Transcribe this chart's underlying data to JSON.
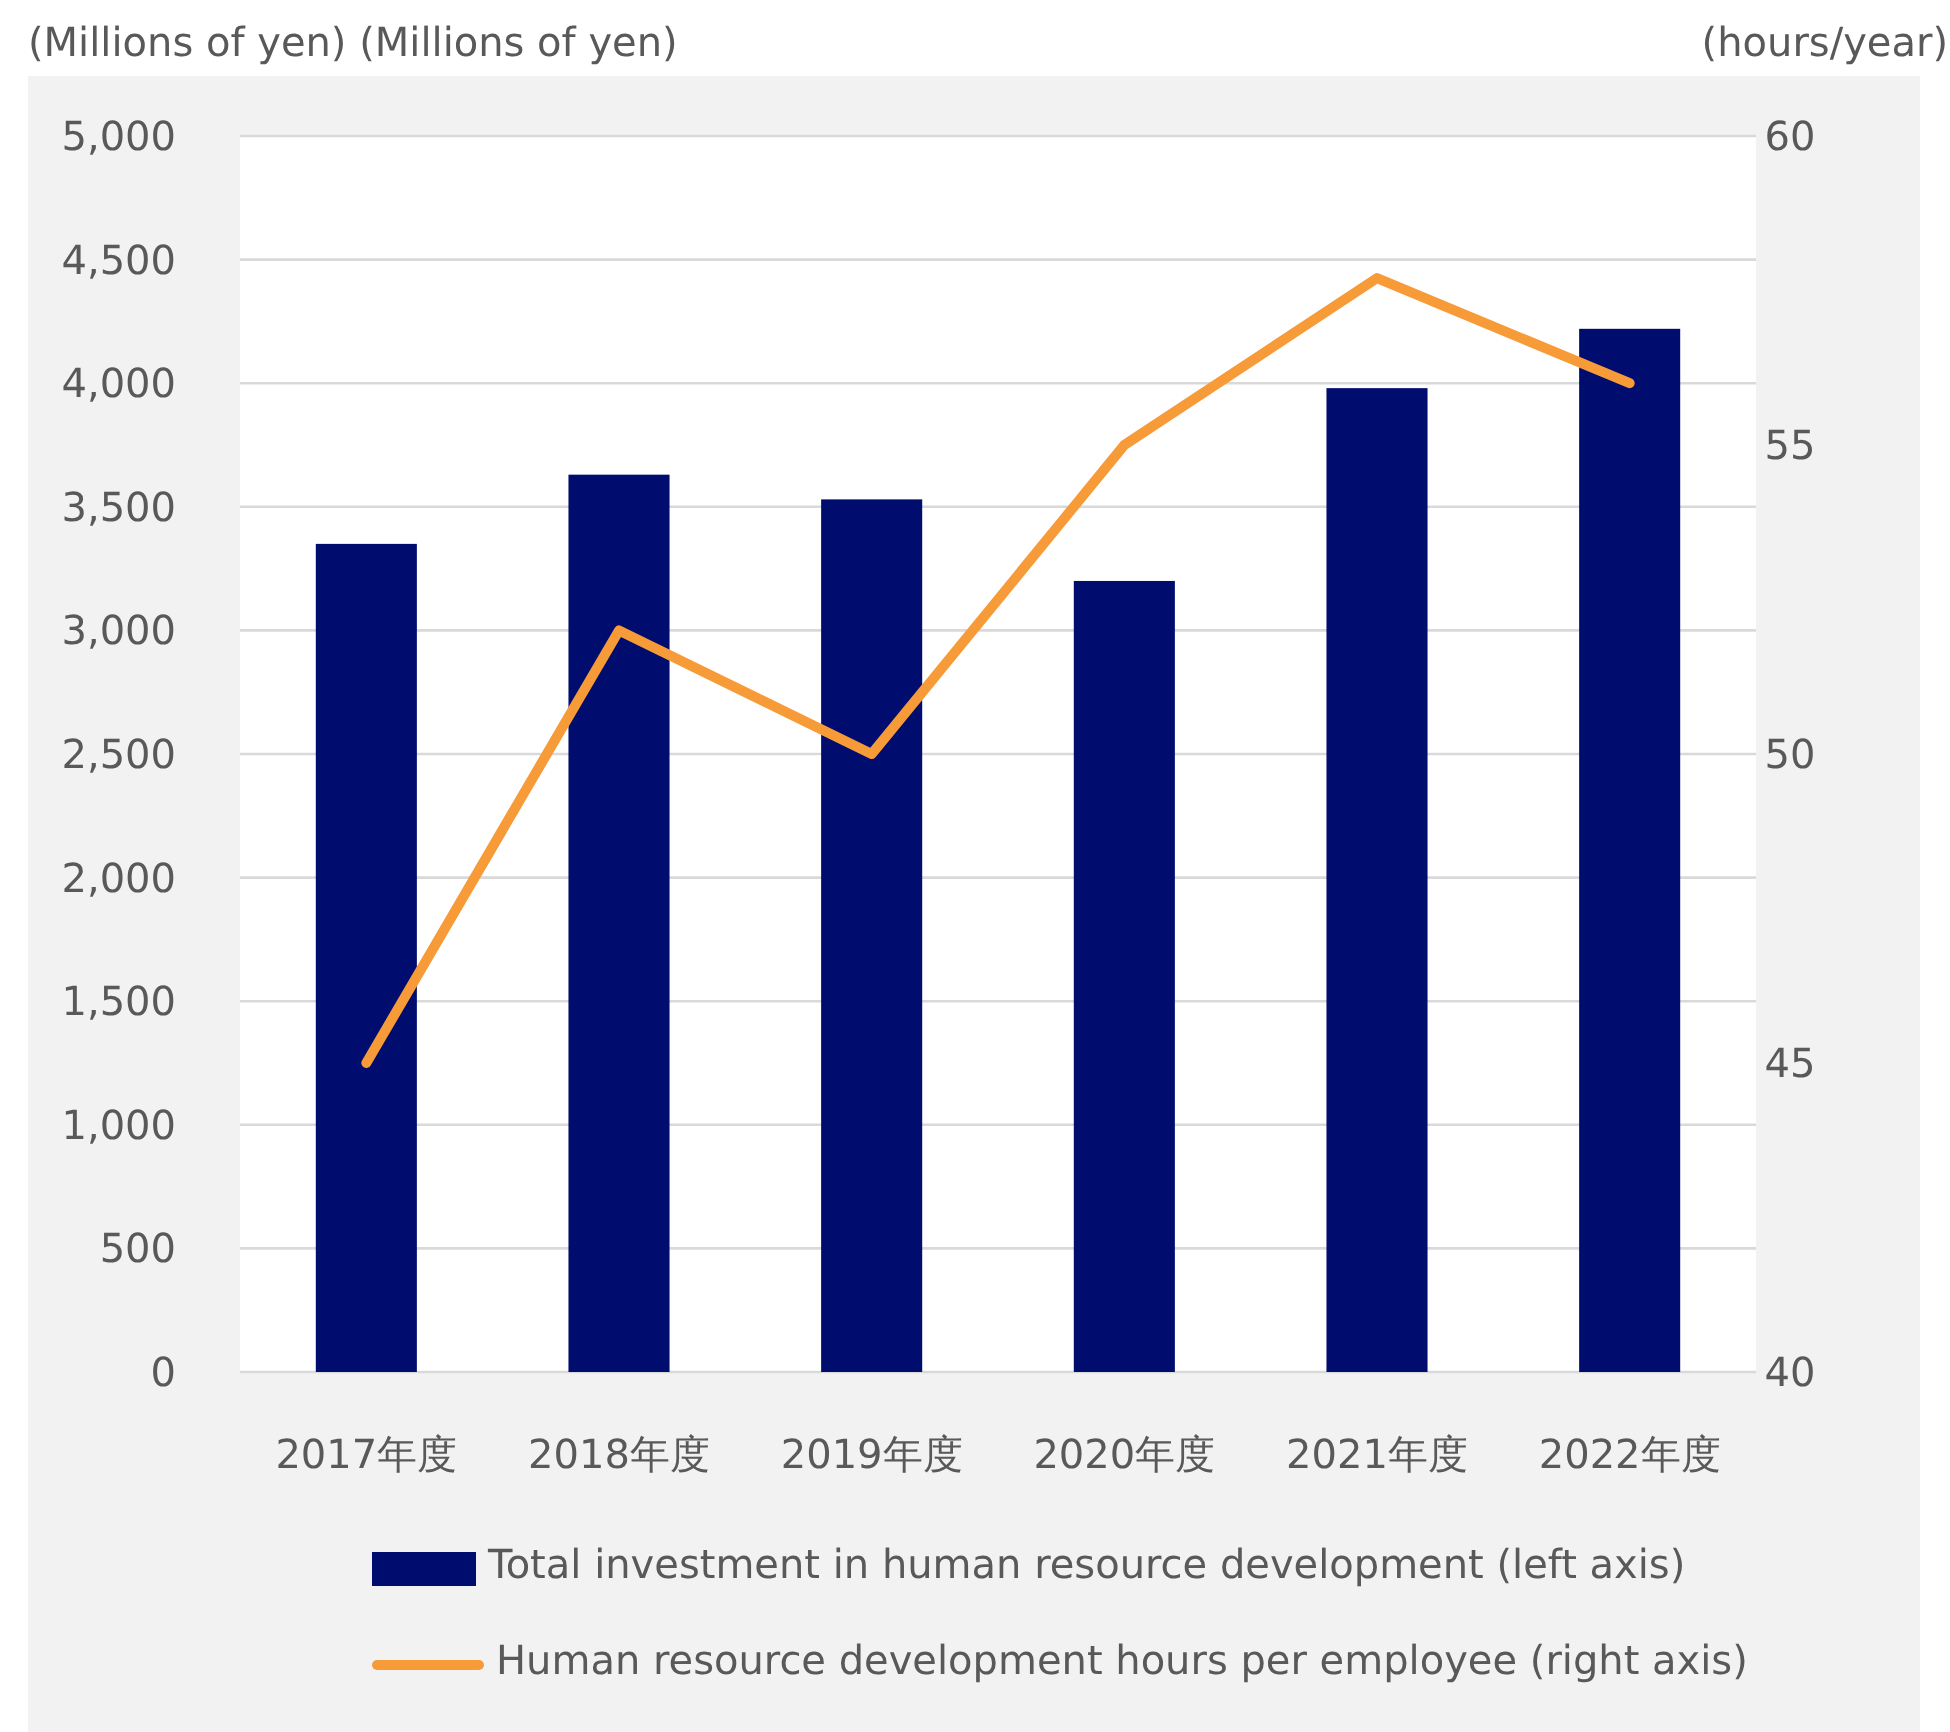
{
  "chart_data": {
    "type": "bar",
    "ylabel": "(Millions of yen) (Millions of yen)",
    "y2label": "(hours/year)",
    "categories": [
      "2017年度",
      "2018年度",
      "2019年度",
      "2020年度",
      "2021年度",
      "2022年度"
    ],
    "series": [
      {
        "name": "Total investment in human resource development (left axis)",
        "color": "#000c6e",
        "values": [
          3350,
          3630,
          3530,
          3200,
          3980,
          4220
        ]
      },
      {
        "name": "Human resource development hours per employee (right axis)",
        "type": "line",
        "axis": "y2",
        "color": "#f79a38",
        "values": [
          45,
          52,
          50,
          55,
          57.7,
          56
        ]
      }
    ],
    "ylim": [
      0,
      5000
    ],
    "yticks": [
      0,
      {
        "value": 500,
        "label": "500"
      },
      {
        "value": 1000,
        "label": "1,000"
      },
      {
        "value": 1500,
        "label": "1,500"
      },
      {
        "value": 2000,
        "label": "2,000"
      },
      {
        "value": 2500,
        "label": "2,500"
      },
      {
        "value": 3000,
        "label": "3,000"
      },
      {
        "value": 3500,
        "label": "3,500"
      },
      {
        "value": 4000,
        "label": "4,000"
      },
      {
        "value": 4500,
        "label": "4,500"
      },
      {
        "value": 5000,
        "label": "5,000"
      }
    ],
    "y2lim": [
      40,
      60
    ],
    "y2ticks": [
      40,
      45,
      50,
      55,
      60
    ],
    "grid": "y",
    "legend": "bottom",
    "marker": "none",
    "line_style": "solid"
  }
}
